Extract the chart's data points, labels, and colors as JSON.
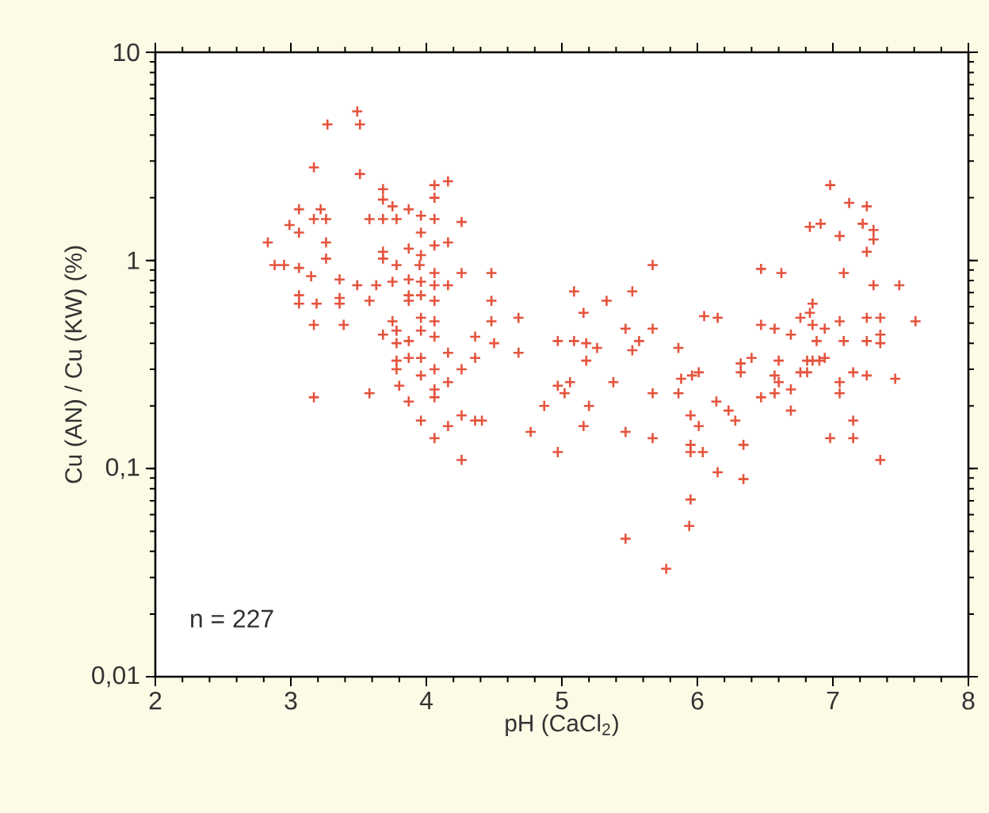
{
  "chart_data": {
    "type": "scatter",
    "xlabel": "pH (CaCl$_{2}$)",
    "ylabel": "Cu (AN) / Cu (KW) (%)",
    "log": "y",
    "marker": "cross",
    "xlim": [
      2,
      8
    ],
    "ylim": [
      0.01,
      10
    ],
    "xticks": [
      2,
      3,
      4,
      5,
      6,
      7,
      8
    ],
    "yticks": [
      {
        "value": 0.01,
        "label": "0,01"
      },
      {
        "value": 0.1,
        "label": "0,1"
      },
      {
        "value": 1,
        "label": "1"
      },
      {
        "value": 10,
        "label": "10"
      }
    ],
    "annotations": [
      "n = 227"
    ],
    "series": [
      {
        "color": "#e5533d",
        "x": [
          3.49,
          3.27,
          3.51,
          3.17,
          3.51,
          3.68,
          3.68,
          4.06,
          4.16,
          4.06,
          3.75,
          3.87,
          3.06,
          3.22,
          2.99,
          3.17,
          3.26,
          3.06,
          3.58,
          3.68,
          3.78,
          3.96,
          4.06,
          4.26,
          3.96,
          2.83,
          3.26,
          3.68,
          3.68,
          3.87,
          3.96,
          4.06,
          4.16,
          3.26,
          2.88,
          2.95,
          3.06,
          3.15,
          3.78,
          3.95,
          4.06,
          4.26,
          4.48,
          3.36,
          3.49,
          3.63,
          3.75,
          3.87,
          3.96,
          4.06,
          4.16,
          3.06,
          3.06,
          3.19,
          3.36,
          3.36,
          3.58,
          3.87,
          3.87,
          3.96,
          4.06,
          4.48,
          4.68,
          3.17,
          3.39,
          3.75,
          3.68,
          3.78,
          3.78,
          3.96,
          3.96,
          4.06,
          4.06,
          3.87,
          4.36,
          4.5,
          4.48,
          3.78,
          3.78,
          3.87,
          3.96,
          3.96,
          4.06,
          4.16,
          4.26,
          4.36,
          4.68,
          4.16,
          4.06,
          4.06,
          3.8,
          3.87,
          3.17,
          3.58,
          3.96,
          4.06,
          4.16,
          4.26,
          4.36,
          4.41,
          4.26,
          5.67,
          5.09,
          5.52,
          5.33,
          6.05,
          6.15,
          5.16,
          5.47,
          5.67,
          4.97,
          5.09,
          5.18,
          5.26,
          5.57,
          5.52,
          5.86,
          5.18,
          6.32,
          6.32,
          5.88,
          5.96,
          6.01,
          5.06,
          4.97,
          5.02,
          5.38,
          5.67,
          5.86,
          4.87,
          5.2,
          6.14,
          6.23,
          5.95,
          6.01,
          6.28,
          4.77,
          5.16,
          5.47,
          5.67,
          5.95,
          5.95,
          6.04,
          6.34,
          4.97,
          6.15,
          6.34,
          5.95,
          5.94,
          5.47,
          5.77,
          6.98,
          7.12,
          7.25,
          6.83,
          6.91,
          7.22,
          7.3,
          7.05,
          7.3,
          7.25,
          6.47,
          6.62,
          7.08,
          7.3,
          7.49,
          6.85,
          6.83,
          6.76,
          6.47,
          6.57,
          6.69,
          6.85,
          6.94,
          7.05,
          7.25,
          7.35,
          7.61,
          6.88,
          7.08,
          7.25,
          7.35,
          7.35,
          6.4,
          6.6,
          6.57,
          6.6,
          6.81,
          6.76,
          6.81,
          6.85,
          6.9,
          6.94,
          7.15,
          7.25,
          7.46,
          7.05,
          7.05,
          6.69,
          6.57,
          6.47,
          6.69,
          7.15,
          6.98,
          7.15,
          7.35
        ],
        "values": [
          5.2,
          4.5,
          4.5,
          2.8,
          2.6,
          2.2,
          1.96,
          2.3,
          2.4,
          2.0,
          1.82,
          1.76,
          1.76,
          1.76,
          1.48,
          1.58,
          1.58,
          1.36,
          1.58,
          1.58,
          1.58,
          1.64,
          1.58,
          1.53,
          1.36,
          1.22,
          1.22,
          1.1,
          1.02,
          1.14,
          1.06,
          1.18,
          1.22,
          1.02,
          0.95,
          0.95,
          0.92,
          0.84,
          0.95,
          0.95,
          0.87,
          0.87,
          0.87,
          0.81,
          0.76,
          0.76,
          0.79,
          0.81,
          0.79,
          0.76,
          0.76,
          0.68,
          0.62,
          0.62,
          0.66,
          0.62,
          0.64,
          0.68,
          0.64,
          0.68,
          0.64,
          0.64,
          0.53,
          0.49,
          0.49,
          0.51,
          0.44,
          0.46,
          0.4,
          0.53,
          0.46,
          0.51,
          0.43,
          0.41,
          0.43,
          0.4,
          0.51,
          0.33,
          0.3,
          0.34,
          0.34,
          0.28,
          0.3,
          0.36,
          0.3,
          0.34,
          0.36,
          0.26,
          0.24,
          0.22,
          0.25,
          0.21,
          0.22,
          0.23,
          0.17,
          0.14,
          0.16,
          0.18,
          0.17,
          0.17,
          0.11,
          0.95,
          0.71,
          0.71,
          0.64,
          0.54,
          0.53,
          0.56,
          0.47,
          0.47,
          0.41,
          0.41,
          0.4,
          0.38,
          0.41,
          0.37,
          0.38,
          0.33,
          0.32,
          0.29,
          0.27,
          0.28,
          0.29,
          0.26,
          0.25,
          0.23,
          0.26,
          0.23,
          0.23,
          0.2,
          0.2,
          0.21,
          0.19,
          0.18,
          0.16,
          0.17,
          0.15,
          0.16,
          0.15,
          0.14,
          0.13,
          0.12,
          0.12,
          0.13,
          0.12,
          0.096,
          0.089,
          0.071,
          0.053,
          0.046,
          0.033,
          2.3,
          1.89,
          1.82,
          1.45,
          1.5,
          1.5,
          1.4,
          1.31,
          1.26,
          1.1,
          0.91,
          0.87,
          0.87,
          0.76,
          0.76,
          0.62,
          0.56,
          0.53,
          0.49,
          0.47,
          0.44,
          0.49,
          0.47,
          0.51,
          0.53,
          0.53,
          0.51,
          0.41,
          0.41,
          0.41,
          0.44,
          0.4,
          0.34,
          0.33,
          0.28,
          0.26,
          0.33,
          0.29,
          0.29,
          0.33,
          0.33,
          0.34,
          0.29,
          0.28,
          0.27,
          0.26,
          0.23,
          0.24,
          0.23,
          0.22,
          0.19,
          0.17,
          0.14,
          0.14,
          0.11
        ]
      }
    ]
  }
}
